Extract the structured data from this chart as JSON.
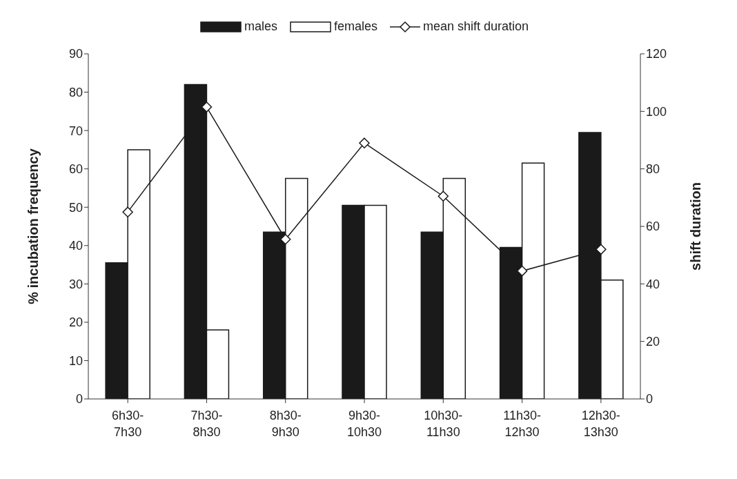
{
  "chart_data": {
    "type": "bar",
    "categories": [
      "6h30-7h30",
      "7h30-8h30",
      "8h30-9h30",
      "9h30-10h30",
      "10h30-11h30",
      "11h30-12h30",
      "12h30-13h30"
    ],
    "series": [
      {
        "name": "males",
        "color": "#1a1a1a",
        "values": [
          35.5,
          82,
          43.5,
          50.5,
          43.5,
          39.5,
          69.5
        ]
      },
      {
        "name": "females",
        "color": "#ffffff",
        "values": [
          65,
          18,
          57.5,
          50.5,
          57.5,
          61.5,
          31
        ]
      },
      {
        "name": "mean shift duration",
        "type": "line",
        "axis": "y2",
        "color": "#1a1a1a",
        "marker": "diamond",
        "values": [
          65,
          101.5,
          55.5,
          89,
          70.5,
          44.5,
          52
        ]
      }
    ],
    "ylabel": "% incubation frequency",
    "y2label": "shift duration",
    "ylim": [
      0,
      90
    ],
    "yticks": [
      0,
      10,
      20,
      30,
      40,
      50,
      60,
      70,
      80,
      90
    ],
    "y2lim": [
      0,
      120
    ],
    "y2ticks": [
      0,
      20,
      40,
      60,
      80,
      100,
      120
    ],
    "legend": "top",
    "grid": false
  }
}
